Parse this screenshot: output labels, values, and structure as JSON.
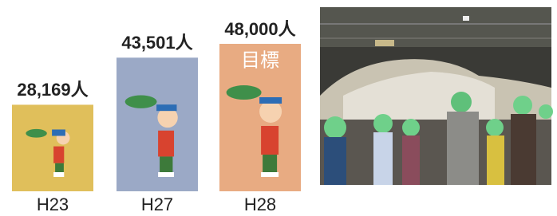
{
  "chart_data": {
    "type": "bar",
    "categories": [
      "H23",
      "H27",
      "H28"
    ],
    "values": [
      28169,
      43501,
      48000
    ],
    "value_labels": [
      "28,169人",
      "43,501人",
      "48,000人"
    ],
    "colors": [
      "#e0bf5b",
      "#9ba9c6",
      "#e8ab82"
    ],
    "annotation": {
      "category": 2,
      "text": "目標"
    }
  }
}
